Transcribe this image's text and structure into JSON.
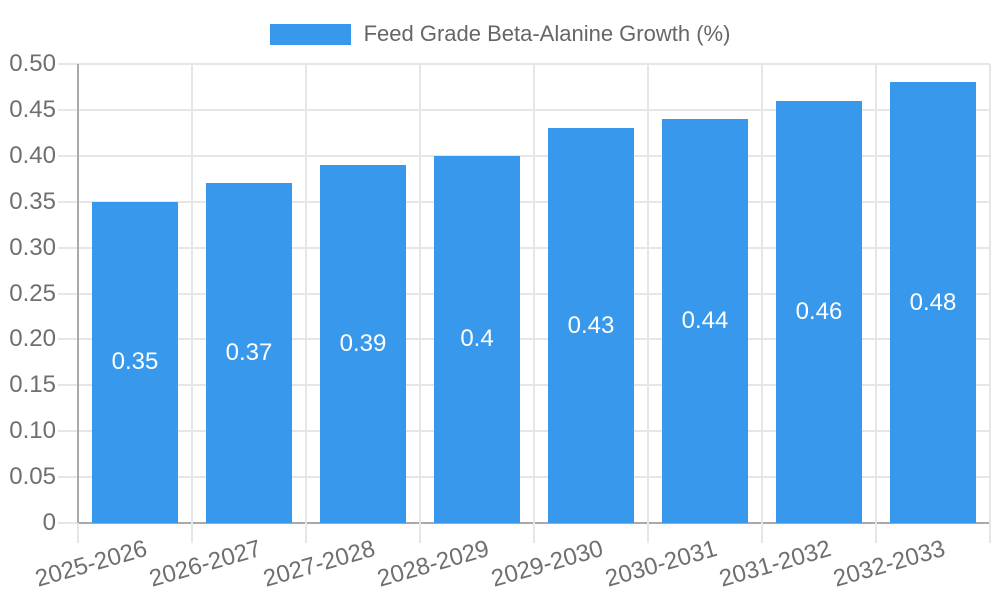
{
  "legend": {
    "swatch_color": "#3899EC"
  },
  "chart_data": {
    "type": "bar",
    "title": "Feed Grade Beta-Alanine Growth (%)",
    "categories": [
      "2025-2026",
      "2026-2027",
      "2027-2028",
      "2028-2029",
      "2029-2030",
      "2030-2031",
      "2031-2032",
      "2032-2033"
    ],
    "values": [
      0.35,
      0.37,
      0.39,
      0.4,
      0.43,
      0.44,
      0.46,
      0.48
    ],
    "bar_labels": [
      "0.35",
      "0.37",
      "0.39",
      "0.4",
      "0.43",
      "0.44",
      "0.46",
      "0.48"
    ],
    "xlabel": "",
    "ylabel": "",
    "ylim": [
      0,
      0.5
    ],
    "y_tick_step": 0.05,
    "y_tick_labels": [
      "0",
      "0.05",
      "0.10",
      "0.15",
      "0.20",
      "0.25",
      "0.30",
      "0.35",
      "0.40",
      "0.45",
      "0.50"
    ],
    "grid": true,
    "legend_position": "top",
    "x_label_rotation_deg": -16,
    "colors": {
      "bar": "#3899EC",
      "bar_label_text": "#ffffff",
      "grid_line": "#e6e6e6",
      "axis_line": "#a9a9a9",
      "tick_text": "#6f6f6f",
      "legend_text": "#666666",
      "background": "#ffffff"
    }
  }
}
